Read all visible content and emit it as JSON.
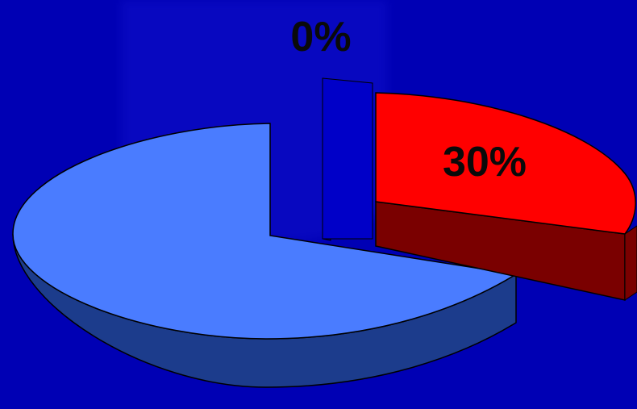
{
  "chart_data": {
    "type": "pie",
    "style": "3d-exploded",
    "slices": [
      {
        "label": "30%",
        "value": 30,
        "top_color": "#ff0000",
        "side_color": "#7a0000"
      },
      {
        "label": "0%",
        "value": 0,
        "top_color": "#0000c8",
        "side_color": "#00009a"
      },
      {
        "label": "",
        "value": 70,
        "top_color": "#4a7cff",
        "side_color": "#1c3c8c"
      }
    ],
    "legend": "none"
  },
  "colors": {
    "background": "#0000b4",
    "label_text": "#0a0a0a",
    "outline": "#000000"
  }
}
